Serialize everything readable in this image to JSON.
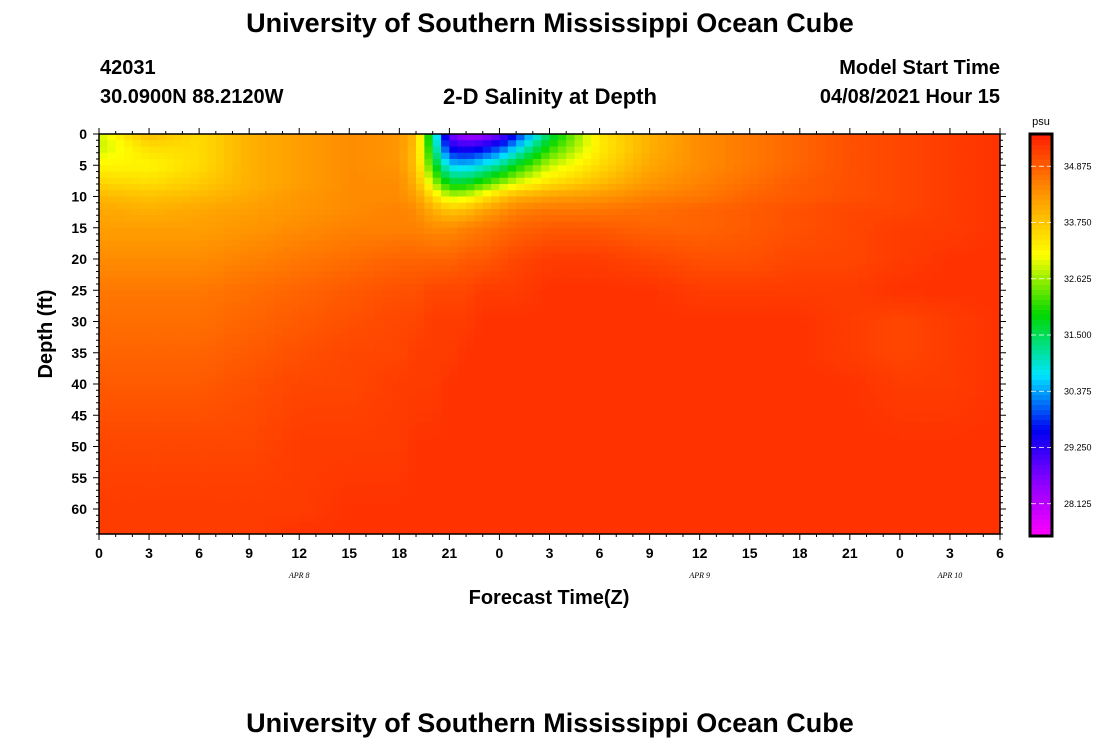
{
  "page": {
    "title_top": "University of Southern Mississippi Ocean Cube",
    "title_bottom": "University of Southern Mississippi Ocean Cube",
    "station_id": "42031",
    "station_coords": "30.0900N  88.2120W",
    "plot_title": "2-D Salinity at Depth",
    "model_start_label": "Model Start Time",
    "model_start_value": "04/08/2021 Hour 15"
  },
  "chart_data": {
    "type": "heatmap",
    "title": "2-D Salinity at Depth",
    "xlabel": "Forecast Time(Z)",
    "ylabel": "Depth (ft)",
    "xlim": [
      0,
      54
    ],
    "ylim": [
      0,
      64
    ],
    "x_ticks": [
      0,
      3,
      6,
      9,
      12,
      15,
      18,
      21,
      24,
      27,
      30,
      33,
      36,
      39,
      42,
      45,
      48,
      51,
      54
    ],
    "x_tick_labels": [
      "0",
      "3",
      "6",
      "9",
      "12",
      "15",
      "18",
      "21",
      "0",
      "3",
      "6",
      "9",
      "12",
      "15",
      "18",
      "21",
      "0",
      "3",
      "6"
    ],
    "y_ticks": [
      0,
      5,
      10,
      15,
      20,
      25,
      30,
      35,
      40,
      45,
      50,
      55,
      60
    ],
    "y_tick_labels": [
      "0",
      "5",
      "10",
      "15",
      "20",
      "25",
      "30",
      "35",
      "40",
      "45",
      "50",
      "55",
      "60"
    ],
    "day_labels": [
      {
        "x": 12,
        "label": "APR 8"
      },
      {
        "x": 36,
        "label": "APR 9"
      },
      {
        "x": 51,
        "label": "APR 10"
      }
    ],
    "colorbar": {
      "units": "psu",
      "min": 27.5,
      "max": 35.5,
      "ticks": [
        28.125,
        29.25,
        30.375,
        31.5,
        32.625,
        33.75,
        34.875
      ],
      "tick_labels": [
        "28.125",
        "29.250",
        "30.375",
        "31.500",
        "32.625",
        "33.750",
        "34.875"
      ]
    },
    "grid_times": [
      0,
      3,
      6,
      9,
      12,
      15,
      18,
      19,
      20,
      21,
      22,
      23,
      24,
      25,
      27,
      30,
      33,
      36,
      39,
      42,
      45,
      48,
      51,
      54
    ],
    "grid_depths": [
      0,
      2,
      5,
      8,
      10,
      12,
      15,
      20,
      25,
      30,
      35,
      40,
      50,
      60,
      64
    ],
    "salinity": [
      [
        32.9,
        33.9,
        33.5,
        34.0,
        34.2,
        34.4,
        34.3,
        33.9,
        31.3,
        28.8,
        28.2,
        28.3,
        28.7,
        29.6,
        31.5,
        33.4,
        34.0,
        34.4,
        34.6,
        34.8,
        35.0,
        35.1,
        35.2,
        35.3
      ],
      [
        32.8,
        33.5,
        33.5,
        34.0,
        34.2,
        34.4,
        34.3,
        33.8,
        31.5,
        29.4,
        29.2,
        29.4,
        29.8,
        30.5,
        32.0,
        33.3,
        34.0,
        34.4,
        34.6,
        34.8,
        35.0,
        35.1,
        35.2,
        35.3
      ],
      [
        33.2,
        33.2,
        33.5,
        34.0,
        34.2,
        34.4,
        34.3,
        33.8,
        32.0,
        30.6,
        30.5,
        30.8,
        31.2,
        31.8,
        32.8,
        33.5,
        34.1,
        34.4,
        34.6,
        34.8,
        35.0,
        35.1,
        35.2,
        35.3
      ],
      [
        33.6,
        33.5,
        33.7,
        34.0,
        34.2,
        34.4,
        34.4,
        34.0,
        32.8,
        31.8,
        31.8,
        32.2,
        32.6,
        33.0,
        33.5,
        33.9,
        34.3,
        34.5,
        34.7,
        34.9,
        35.0,
        35.1,
        35.2,
        35.3
      ],
      [
        33.9,
        33.8,
        33.9,
        34.1,
        34.3,
        34.4,
        34.4,
        34.2,
        33.5,
        32.8,
        32.9,
        33.3,
        33.7,
        34.0,
        34.2,
        34.3,
        34.5,
        34.6,
        34.8,
        34.9,
        35.0,
        35.1,
        35.2,
        35.3
      ],
      [
        34.1,
        34.0,
        34.1,
        34.2,
        34.3,
        34.4,
        34.5,
        34.4,
        34.0,
        33.7,
        33.8,
        34.1,
        34.3,
        34.5,
        34.6,
        34.6,
        34.7,
        34.8,
        34.9,
        35.0,
        35.1,
        35.1,
        35.2,
        35.3
      ],
      [
        34.2,
        34.2,
        34.2,
        34.3,
        34.4,
        34.5,
        34.5,
        34.5,
        34.4,
        34.4,
        34.5,
        34.6,
        34.7,
        34.8,
        34.9,
        34.9,
        34.8,
        34.8,
        34.9,
        35.0,
        35.1,
        35.2,
        35.2,
        35.3
      ],
      [
        34.4,
        34.4,
        34.4,
        34.5,
        34.6,
        34.7,
        34.8,
        34.8,
        34.8,
        34.8,
        34.9,
        34.9,
        35.0,
        35.1,
        35.2,
        35.2,
        35.1,
        35.0,
        35.0,
        35.1,
        35.1,
        35.2,
        35.3,
        35.3
      ],
      [
        34.6,
        34.6,
        34.6,
        34.7,
        34.8,
        34.9,
        35.0,
        35.0,
        35.1,
        35.1,
        35.1,
        35.2,
        35.2,
        35.2,
        35.3,
        35.3,
        35.3,
        35.2,
        35.2,
        35.2,
        35.2,
        35.3,
        35.3,
        35.3
      ],
      [
        34.7,
        34.7,
        34.7,
        34.8,
        34.9,
        35.0,
        35.1,
        35.1,
        35.2,
        35.2,
        35.2,
        35.3,
        35.3,
        35.3,
        35.3,
        35.3,
        35.3,
        35.3,
        35.3,
        35.3,
        35.2,
        35.1,
        35.2,
        35.3
      ],
      [
        34.8,
        34.8,
        34.8,
        34.9,
        35.0,
        35.1,
        35.1,
        35.2,
        35.2,
        35.2,
        35.3,
        35.3,
        35.3,
        35.3,
        35.3,
        35.3,
        35.3,
        35.3,
        35.3,
        35.3,
        35.2,
        35.1,
        35.2,
        35.3
      ],
      [
        34.9,
        34.9,
        34.9,
        35.0,
        35.1,
        35.1,
        35.2,
        35.2,
        35.2,
        35.3,
        35.3,
        35.3,
        35.3,
        35.3,
        35.3,
        35.3,
        35.3,
        35.3,
        35.3,
        35.3,
        35.3,
        35.2,
        35.2,
        35.3
      ],
      [
        35.1,
        35.1,
        35.1,
        35.1,
        35.2,
        35.2,
        35.2,
        35.3,
        35.3,
        35.3,
        35.3,
        35.3,
        35.3,
        35.3,
        35.3,
        35.3,
        35.3,
        35.3,
        35.3,
        35.3,
        35.3,
        35.3,
        35.3,
        35.3
      ],
      [
        35.2,
        35.2,
        35.2,
        35.2,
        35.2,
        35.3,
        35.3,
        35.3,
        35.3,
        35.3,
        35.3,
        35.3,
        35.3,
        35.3,
        35.3,
        35.3,
        35.3,
        35.3,
        35.3,
        35.3,
        35.3,
        35.3,
        35.3,
        35.3
      ],
      [
        35.2,
        35.2,
        35.2,
        35.2,
        35.3,
        35.3,
        35.3,
        35.3,
        35.3,
        35.3,
        35.3,
        35.3,
        35.3,
        35.3,
        35.3,
        35.3,
        35.3,
        35.3,
        35.3,
        35.3,
        35.3,
        35.3,
        35.3,
        35.3
      ]
    ]
  }
}
